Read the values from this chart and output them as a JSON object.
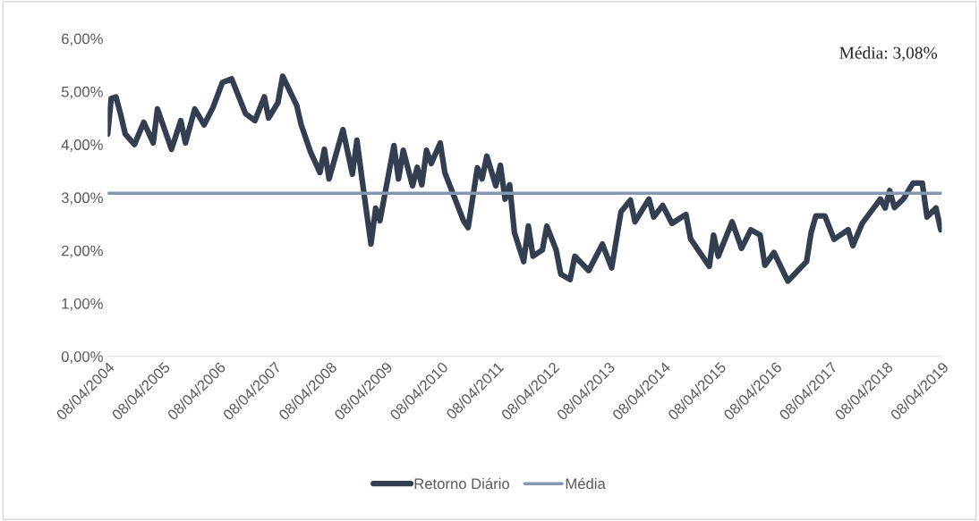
{
  "chart_data": {
    "type": "line",
    "x": [
      "2004-04-08",
      "2004-05",
      "2004-06",
      "2004-07",
      "2004-08",
      "2004-10",
      "2004-12",
      "2005-02",
      "2005-03",
      "2005-06",
      "2005-08",
      "2005-09",
      "2005-11",
      "2006-01",
      "2006-03",
      "2006-05",
      "2006-07",
      "2006-10",
      "2006-12",
      "2007-02",
      "2007-03",
      "2007-05",
      "2007-06",
      "2007-09",
      "2007-10",
      "2007-12",
      "2008-02",
      "2008-03",
      "2008-04",
      "2008-07",
      "2008-08",
      "2008-09",
      "2008-10",
      "2008-11",
      "2009-01",
      "2009-02",
      "2009-03",
      "2009-06",
      "2009-07",
      "2009-08",
      "2009-10",
      "2009-11",
      "2009-12",
      "2010-01",
      "2010-02",
      "2010-04",
      "2010-05",
      "2010-07",
      "2010-09",
      "2010-10",
      "2010-12",
      "2011-01",
      "2011-02",
      "2011-04",
      "2011-05",
      "2011-06",
      "2011-07",
      "2011-08",
      "2011-10",
      "2011-11",
      "2011-12",
      "2012-02",
      "2012-03",
      "2012-05",
      "2012-06",
      "2012-08",
      "2012-09",
      "2012-12",
      "2013-03",
      "2013-05",
      "2013-07",
      "2013-09",
      "2013-10",
      "2014-01",
      "2014-02",
      "2014-04",
      "2014-06",
      "2014-09",
      "2014-10",
      "2015-02",
      "2015-03",
      "2015-04",
      "2015-07",
      "2015-09",
      "2015-11",
      "2016-01",
      "2016-02",
      "2016-04",
      "2016-07",
      "2016-11",
      "2016-12",
      "2017-01",
      "2017-03",
      "2017-05",
      "2017-08",
      "2017-09",
      "2017-11",
      "2018-03",
      "2018-04",
      "2018-05",
      "2018-06",
      "2018-08",
      "2018-10",
      "2018-12",
      "2019-01",
      "2019-03",
      "2019-04"
    ],
    "series": [
      {
        "name": "Retorno Diário",
        "color": "#333f50",
        "values": [
          4.2,
          4.87,
          4.9,
          4.58,
          4.2,
          4.0,
          4.42,
          4.03,
          4.67,
          3.91,
          4.45,
          4.03,
          4.67,
          4.37,
          4.7,
          5.17,
          5.24,
          4.58,
          4.45,
          4.9,
          4.5,
          4.79,
          5.29,
          4.74,
          4.37,
          3.86,
          3.47,
          3.91,
          3.35,
          4.28,
          3.86,
          3.44,
          4.08,
          3.4,
          2.12,
          2.8,
          2.56,
          3.98,
          3.35,
          3.89,
          3.22,
          3.57,
          3.24,
          3.89,
          3.64,
          4.03,
          3.47,
          3.02,
          2.56,
          2.43,
          3.56,
          3.35,
          3.78,
          3.22,
          3.61,
          2.97,
          3.24,
          2.34,
          1.79,
          2.46,
          1.89,
          2.01,
          2.46,
          2.01,
          1.55,
          1.45,
          1.89,
          1.62,
          2.12,
          1.67,
          2.73,
          2.95,
          2.54,
          2.97,
          2.63,
          2.85,
          2.51,
          2.68,
          2.22,
          1.7,
          2.29,
          1.89,
          2.54,
          2.04,
          2.39,
          2.29,
          1.72,
          1.96,
          1.42,
          1.79,
          2.34,
          2.65,
          2.65,
          2.21,
          2.39,
          2.09,
          2.51,
          2.97,
          2.8,
          3.13,
          2.81,
          2.98,
          3.27,
          3.27,
          2.63,
          2.8,
          2.39
        ]
      }
    ],
    "ref_lines": [
      {
        "axis": "y",
        "value": 3.08,
        "label": "Média",
        "color": "#8497b0",
        "line_style": "solid"
      }
    ],
    "annotations": [
      "Média: 3,08%"
    ],
    "xlim": [
      "2004-04-08",
      "2019-04-08"
    ],
    "xticks": [
      {
        "value": "2004-04-08",
        "label": "08/04/2004"
      },
      {
        "value": "2005-04-08",
        "label": "08/04/2005"
      },
      {
        "value": "2006-04-08",
        "label": "08/04/2006"
      },
      {
        "value": "2007-04-08",
        "label": "08/04/2007"
      },
      {
        "value": "2008-04-08",
        "label": "08/04/2008"
      },
      {
        "value": "2009-04-08",
        "label": "08/04/2009"
      },
      {
        "value": "2010-04-08",
        "label": "08/04/2010"
      },
      {
        "value": "2011-04-08",
        "label": "08/04/2011"
      },
      {
        "value": "2012-04-08",
        "label": "08/04/2012"
      },
      {
        "value": "2013-04-08",
        "label": "08/04/2013"
      },
      {
        "value": "2014-04-08",
        "label": "08/04/2014"
      },
      {
        "value": "2015-04-08",
        "label": "08/04/2015"
      },
      {
        "value": "2016-04-08",
        "label": "08/04/2016"
      },
      {
        "value": "2017-04-08",
        "label": "08/04/2017"
      },
      {
        "value": "2018-04-08",
        "label": "08/04/2018"
      },
      {
        "value": "2019-04-08",
        "label": "08/04/2019"
      }
    ],
    "ylim": [
      0,
      6
    ],
    "yticks": [
      {
        "value": 0,
        "label": "0,00%"
      },
      {
        "value": 1,
        "label": "1,00%"
      },
      {
        "value": 2,
        "label": "2,00%"
      },
      {
        "value": 3,
        "label": "3,00%"
      },
      {
        "value": 4,
        "label": "4,00%"
      },
      {
        "value": 5,
        "label": "5,00%"
      },
      {
        "value": 6,
        "label": "6,00%"
      }
    ],
    "grid": false,
    "legend": "bottom",
    "marker": "none",
    "line_style": "solid"
  }
}
